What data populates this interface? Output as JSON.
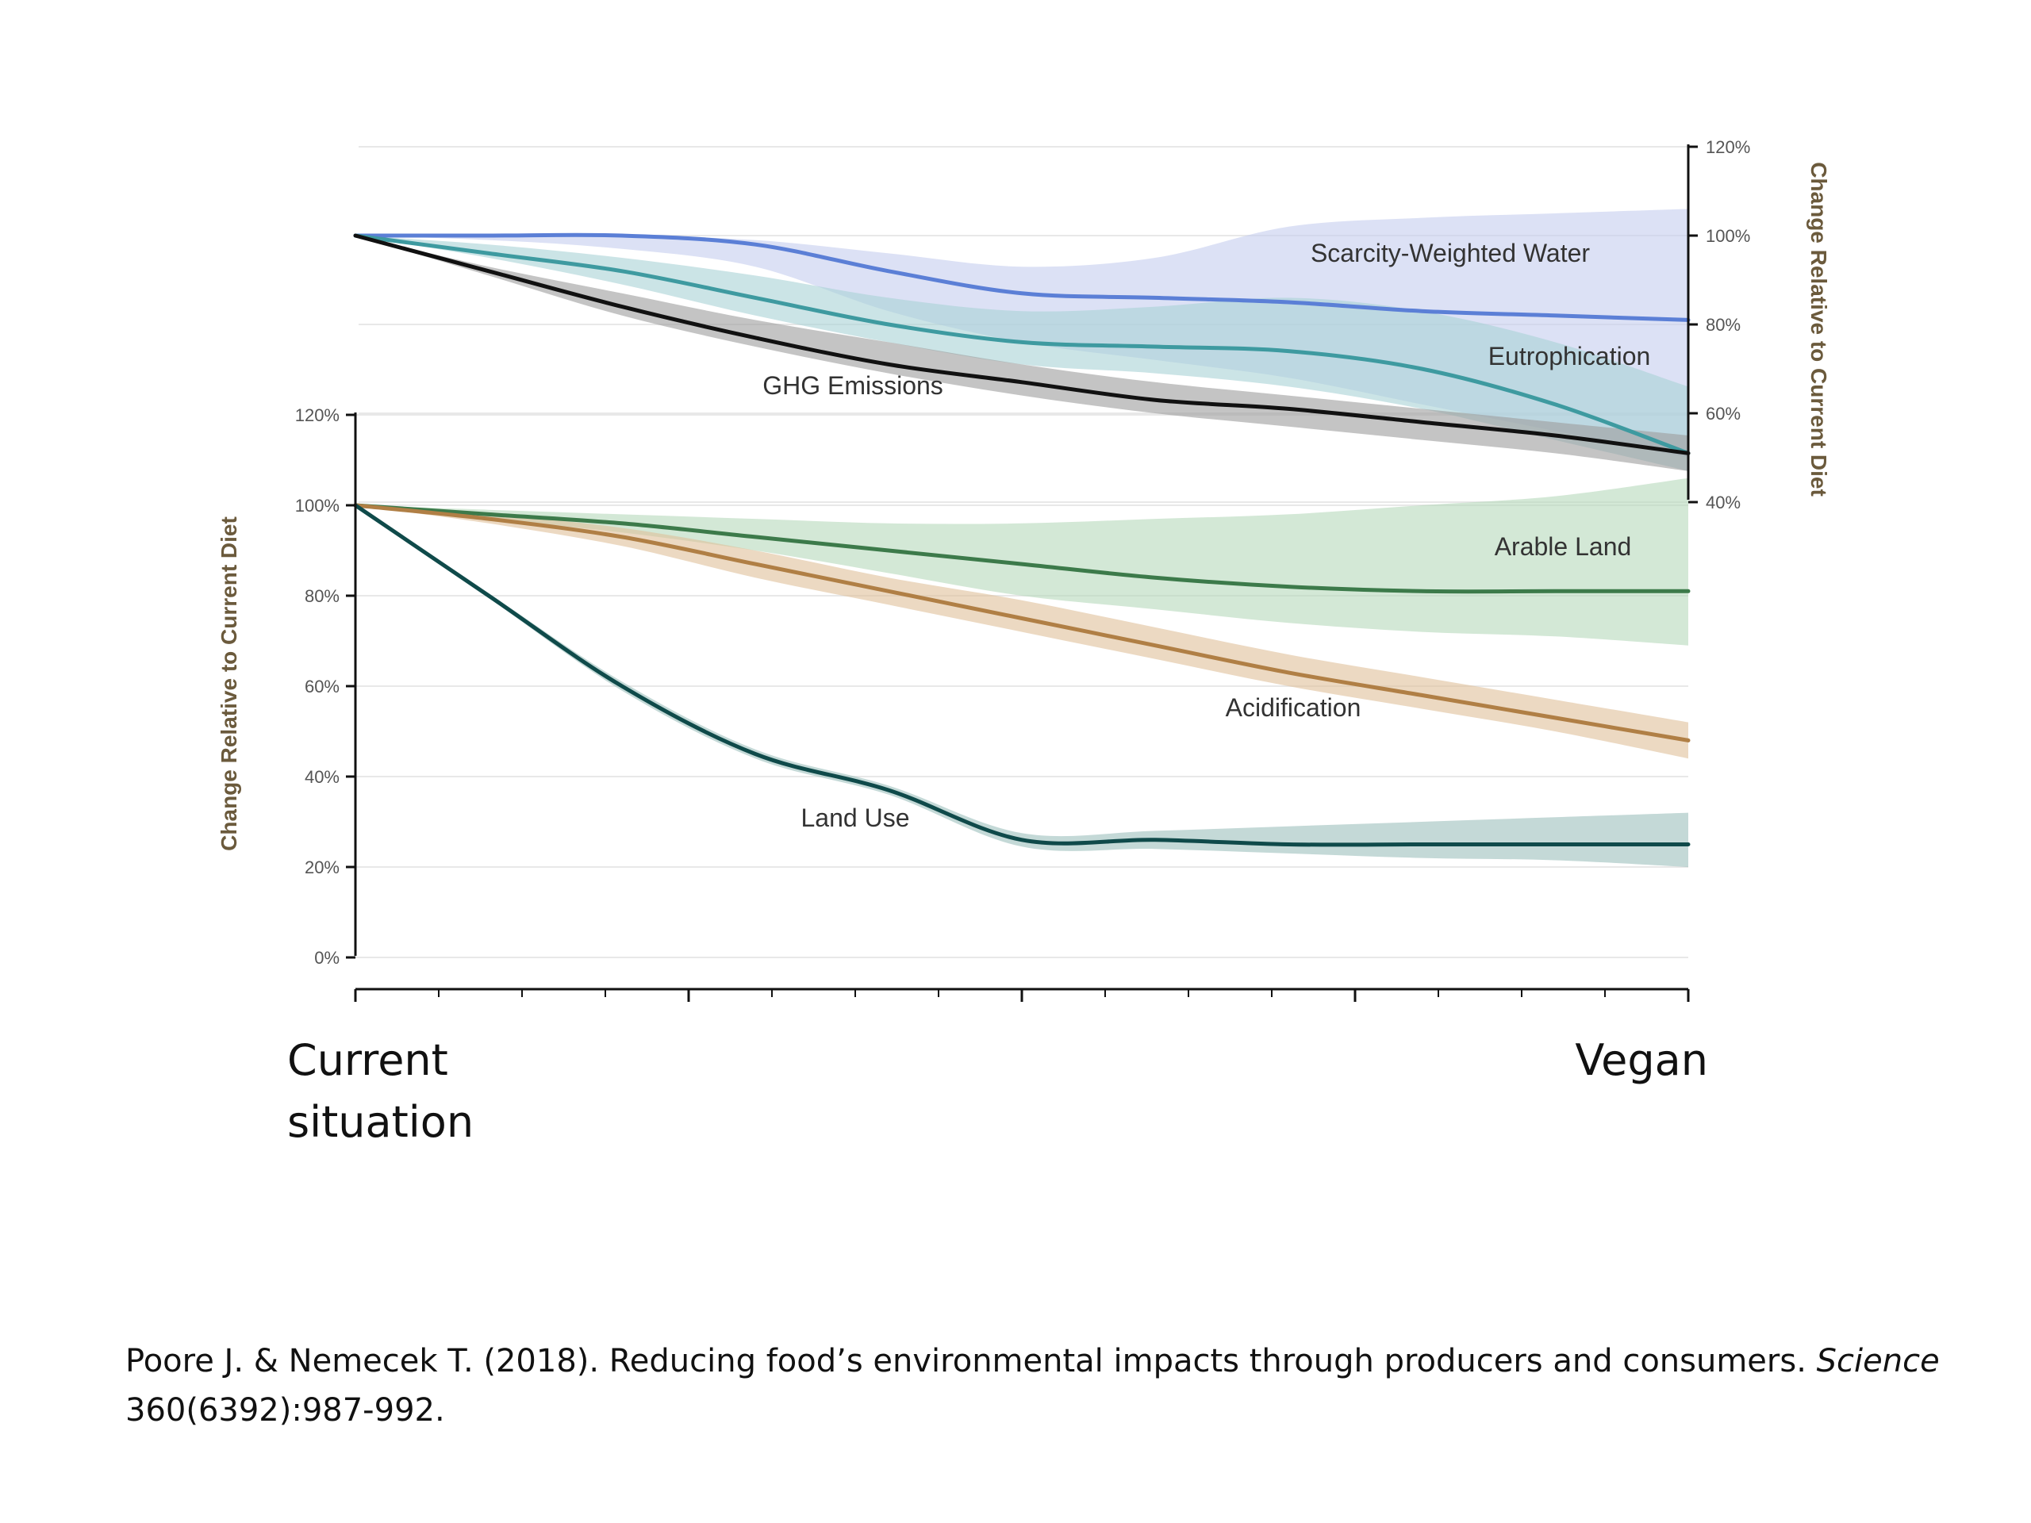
{
  "chart_data": [
    {
      "type": "area",
      "panel": "top",
      "y_axis_side": "right",
      "ylabel": "Change Relative to Current Diet",
      "ylim": [
        40,
        120
      ],
      "yticks": [
        "120%",
        "100%",
        "80%",
        "60%",
        "40%"
      ],
      "ytick_values": [
        120,
        100,
        80,
        60,
        40
      ],
      "x": [
        0,
        10,
        20,
        30,
        40,
        50,
        60,
        70,
        80,
        90,
        100
      ],
      "series": [
        {
          "name": "Scarcity-Weighted Water",
          "color": "#5b7fd6",
          "band_color": "#c5cdee",
          "values": [
            100,
            100,
            100,
            98,
            92,
            87,
            86,
            85,
            83,
            82,
            81
          ],
          "upper": [
            100,
            100,
            100,
            99,
            96,
            93,
            95,
            102,
            104,
            105,
            106
          ],
          "lower": [
            100,
            99,
            97,
            93,
            83,
            76,
            72,
            68,
            62,
            56,
            50
          ]
        },
        {
          "name": "Eutrophication",
          "color": "#3e9aa0",
          "band_color": "#a8d2d6",
          "values": [
            100,
            96,
            92,
            86,
            80,
            76,
            75,
            74,
            70,
            62,
            51
          ],
          "upper": [
            100,
            98,
            95,
            91,
            86,
            83,
            84,
            86,
            83,
            76,
            66
          ],
          "lower": [
            100,
            95,
            89,
            82,
            76,
            71,
            69,
            66,
            61,
            54,
            47
          ]
        },
        {
          "name": "GHG Emissions",
          "color": "#111111",
          "band_color": "#9c9c9c",
          "values": [
            100,
            92,
            84,
            77,
            71,
            67,
            63,
            61,
            58,
            55,
            51
          ],
          "upper": [
            100,
            93,
            87,
            81,
            76,
            71,
            67,
            64,
            61,
            58,
            55
          ],
          "lower": [
            100,
            91,
            82,
            75,
            69,
            64,
            60,
            57,
            54,
            51,
            47
          ]
        }
      ]
    },
    {
      "type": "area",
      "panel": "bottom",
      "y_axis_side": "left",
      "ylabel": "Change Relative to Current Diet",
      "ylim": [
        0,
        120
      ],
      "yticks": [
        "120%",
        "100%",
        "80%",
        "60%",
        "40%",
        "20%",
        "0%"
      ],
      "ytick_values": [
        120,
        100,
        80,
        60,
        40,
        20,
        0
      ],
      "x": [
        0,
        10,
        20,
        30,
        40,
        50,
        60,
        70,
        80,
        90,
        100
      ],
      "series": [
        {
          "name": "Arable Land",
          "color": "#3c7a4a",
          "band_color": "#b5d9bb",
          "values": [
            100,
            98,
            96,
            93,
            90,
            87,
            84,
            82,
            81,
            81,
            81
          ],
          "upper": [
            100,
            99,
            98,
            97,
            96,
            96,
            97,
            98,
            100,
            102,
            106
          ],
          "lower": [
            100,
            97,
            94,
            90,
            85,
            80,
            77,
            74,
            72,
            71,
            69
          ]
        },
        {
          "name": "Acidification",
          "color": "#b07f45",
          "band_color": "#e0c09a",
          "values": [
            100,
            97,
            93,
            87,
            81,
            75,
            69,
            63,
            58,
            53,
            48
          ],
          "upper": [
            100,
            98,
            95,
            90,
            84,
            79,
            73,
            67,
            62,
            57,
            52
          ],
          "lower": [
            100,
            96,
            91,
            84,
            78,
            72,
            66,
            60,
            55,
            50,
            44
          ]
        },
        {
          "name": "Land Use",
          "color": "#0f4a4a",
          "band_color": "#9cbfbd",
          "values": [
            100,
            80,
            60,
            45,
            37,
            26,
            26,
            25,
            25,
            25,
            25
          ],
          "upper": [
            100,
            80.5,
            61,
            46,
            38,
            27.5,
            28,
            29,
            30,
            31,
            32
          ],
          "lower": [
            100,
            79.5,
            59,
            44,
            36,
            24.5,
            24,
            23,
            22,
            21.5,
            20
          ]
        }
      ]
    }
  ],
  "xaxis": {
    "start_label": [
      "Current",
      "situation"
    ],
    "end_label": "Vegan"
  },
  "citation": {
    "before_italic": "Poore J. & Nemecek T. (2018). Reducing food’s environmental impacts through producers and consumers. ",
    "italic": "Science",
    "after_italic": " 360(6392):987-992."
  }
}
